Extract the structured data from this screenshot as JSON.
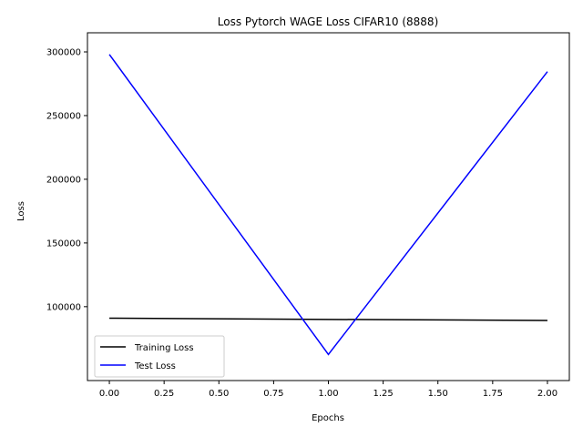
{
  "chart_data": {
    "type": "line",
    "title": "Loss Pytorch WAGE Loss CIFAR10 (8888)",
    "xlabel": "Epochs",
    "ylabel": "Loss",
    "x": [
      0,
      1,
      2
    ],
    "xlim": [
      -0.1,
      2.1
    ],
    "ylim": [
      42000,
      315000
    ],
    "xticks": [
      0.0,
      0.25,
      0.5,
      0.75,
      1.0,
      1.25,
      1.5,
      1.75,
      2.0
    ],
    "xtick_labels": [
      "0.00",
      "0.25",
      "0.50",
      "0.75",
      "1.00",
      "1.25",
      "1.50",
      "1.75",
      "2.00"
    ],
    "yticks": [
      100000,
      150000,
      200000,
      250000,
      300000
    ],
    "ytick_labels": [
      "100000",
      "150000",
      "200000",
      "250000",
      "300000"
    ],
    "grid": false,
    "legend_position": "bottom-left",
    "series": [
      {
        "name": "Training Loss",
        "values": [
          91000,
          90000,
          89200
        ],
        "color": "#000000"
      },
      {
        "name": "Test Loss",
        "values": [
          298000,
          62500,
          284500
        ],
        "color": "#0000ff"
      }
    ]
  }
}
